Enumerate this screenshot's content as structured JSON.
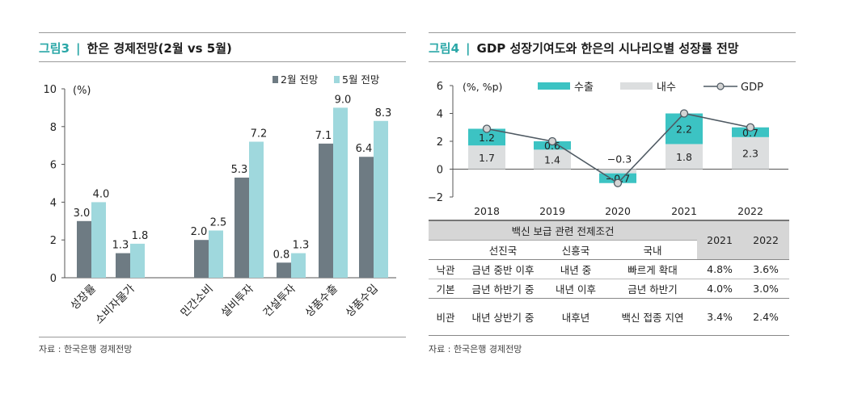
{
  "left": {
    "fig_label": "그림3",
    "title": "한은 경제전망(2월 vs 5월)",
    "source": "자료 : 한국은행 경제전망",
    "chart_data": {
      "type": "bar",
      "title": "한은 경제전망(2월 vs 5월)",
      "unit_label": "(%)",
      "categories": [
        "성장률",
        "소비자물가",
        "민간소비",
        "설비투자",
        "건설투자",
        "상품수출",
        "상품수입"
      ],
      "series": [
        {
          "name": "2월 전망",
          "color": "#6e7b83",
          "values": [
            3.0,
            1.3,
            2.0,
            5.3,
            0.8,
            7.1,
            6.4
          ]
        },
        {
          "name": "5월 전망",
          "color": "#9fd8dd",
          "values": [
            4.0,
            1.8,
            2.5,
            7.2,
            1.3,
            9.0,
            8.3
          ]
        }
      ],
      "ylim": [
        0,
        10
      ],
      "yticks": [
        0,
        2,
        4,
        6,
        8,
        10
      ],
      "legend": "top-right",
      "grid": false
    }
  },
  "right": {
    "fig_label": "그림4",
    "title": "GDP 성장기여도와 한은의 시나리오별 성장률 전망",
    "source": "자료 : 한국은행 경제전망",
    "chart_data": {
      "type": "bar",
      "stacked": true,
      "unit_label": "(%, %p)",
      "categories": [
        "2018",
        "2019",
        "2020",
        "2021",
        "2022"
      ],
      "series": [
        {
          "name": "수출",
          "type": "bar",
          "color": "#3cc3c3",
          "values": [
            1.2,
            0.6,
            -0.7,
            2.2,
            0.7
          ]
        },
        {
          "name": "내수",
          "type": "bar",
          "color": "#dcdedf",
          "values": [
            1.7,
            1.4,
            -0.3,
            1.8,
            2.3
          ]
        },
        {
          "name": "GDP",
          "type": "line",
          "color": "#4f5a63",
          "values": [
            2.9,
            2.0,
            -1.0,
            4.0,
            3.0
          ]
        }
      ],
      "ylim": [
        -2,
        6
      ],
      "yticks": [
        -2,
        0,
        2,
        4,
        6
      ],
      "legend": "top",
      "grid": false
    },
    "table": {
      "header_main": "백신 보급 관련 전제조건",
      "sub_headers": [
        "선진국",
        "신흥국",
        "국내"
      ],
      "year_headers": [
        "2021",
        "2022"
      ],
      "rows": [
        {
          "scenario": "낙관",
          "advanced": "금년 중반 이후",
          "emerging": "내년 중",
          "domestic": "빠르게 확대",
          "y2021": "4.8%",
          "y2022": "3.6%"
        },
        {
          "scenario": "기본",
          "advanced": "금년 하반기 중",
          "emerging": "내년 이후",
          "domestic": "금년 하반기",
          "y2021": "4.0%",
          "y2022": "3.0%"
        },
        {
          "scenario": "비관",
          "advanced": "내년 상반기 중",
          "emerging": "내후년",
          "domestic": "백신 접종 지연",
          "y2021": "3.4%",
          "y2022": "2.4%"
        }
      ]
    }
  }
}
